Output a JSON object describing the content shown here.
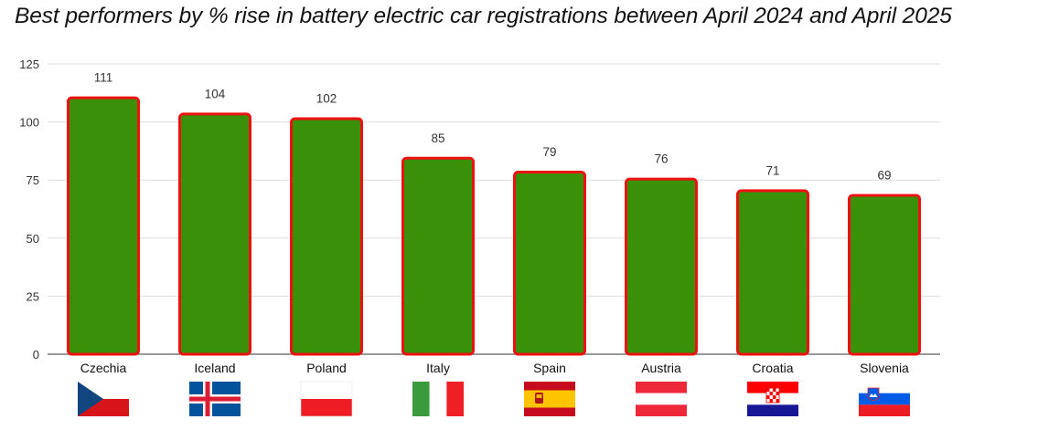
{
  "chart_data": {
    "type": "bar",
    "title": "Best performers by % rise in battery electric car registrations between April 2024 and April 2025",
    "categories": [
      "Czechia",
      "Iceland",
      "Poland",
      "Italy",
      "Spain",
      "Austria",
      "Croatia",
      "Slovenia"
    ],
    "values": [
      111,
      104,
      102,
      85,
      79,
      76,
      71,
      69
    ],
    "data_labels": [
      "111",
      "104",
      "102",
      "85",
      "79",
      "76",
      "71",
      "69"
    ],
    "ylim": [
      0,
      125
    ],
    "yticks": [
      0,
      25,
      50,
      75,
      100,
      125
    ],
    "grid": true,
    "bar_color": "#3a9008",
    "bar_outline_color": "#ee1111",
    "legend": "none",
    "flags": [
      "czech-flag",
      "iceland-flag",
      "poland-flag",
      "italy-flag",
      "spain-flag",
      "austria-flag",
      "croatia-flag",
      "slovenia-flag"
    ]
  }
}
